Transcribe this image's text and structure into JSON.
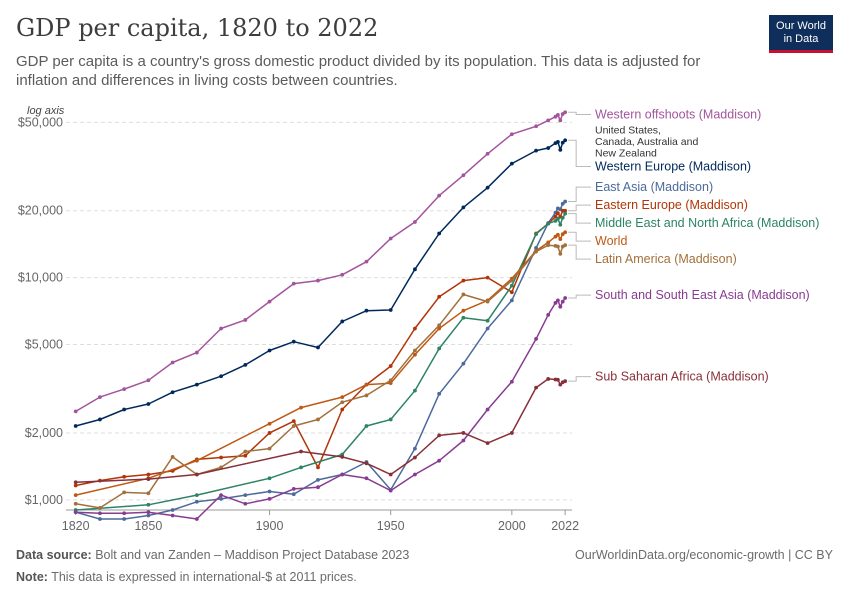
{
  "header": {
    "title": "GDP per capita, 1820 to 2022",
    "subtitle": "GDP per capita is a country's gross domestic product divided by its population. This data is adjusted for inflation and differences in living costs between countries.",
    "logo_line1": "Our World",
    "logo_line2": "in Data"
  },
  "footer": {
    "source_label": "Data source:",
    "source_text": "Bolt and van Zanden – Maddison Project Database 2023",
    "note_label": "Note:",
    "note_text": "This data is expressed in international-$ at 2011 prices.",
    "credit": "OurWorldinData.org/economic-growth | CC BY"
  },
  "chart_data": {
    "type": "line",
    "axis_note": "log axis",
    "y_scale": "log",
    "ylim": [
      900,
      58000
    ],
    "xlim": [
      1820,
      2022
    ],
    "y_ticks": [
      {
        "value": 1000,
        "label": "$1,000"
      },
      {
        "value": 2000,
        "label": "$2,000"
      },
      {
        "value": 5000,
        "label": "$5,000"
      },
      {
        "value": 10000,
        "label": "$10,000"
      },
      {
        "value": 20000,
        "label": "$20,000"
      },
      {
        "value": 50000,
        "label": "$50,000"
      }
    ],
    "x_ticks": [
      {
        "value": 1820,
        "label": "1820"
      },
      {
        "value": 1850,
        "label": "1850"
      },
      {
        "value": 1900,
        "label": "1900"
      },
      {
        "value": 1950,
        "label": "1950"
      },
      {
        "value": 2000,
        "label": "2000"
      },
      {
        "value": 2022,
        "label": "2022"
      }
    ],
    "grid": true,
    "legend": "right-side labels",
    "series": [
      {
        "name": "Western offshoots (Maddison)",
        "note": "United States, Canada, Australia and New Zealand",
        "color": "#a2559c",
        "label_value": 52000,
        "points": [
          [
            1820,
            2500
          ],
          [
            1830,
            2900
          ],
          [
            1840,
            3150
          ],
          [
            1850,
            3450
          ],
          [
            1860,
            4150
          ],
          [
            1870,
            4600
          ],
          [
            1880,
            5900
          ],
          [
            1890,
            6450
          ],
          [
            1900,
            7800
          ],
          [
            1910,
            9400
          ],
          [
            1920,
            9700
          ],
          [
            1930,
            10300
          ],
          [
            1940,
            11800
          ],
          [
            1950,
            15000
          ],
          [
            1960,
            17800
          ],
          [
            1970,
            23400
          ],
          [
            1980,
            28900
          ],
          [
            1990,
            36100
          ],
          [
            2000,
            44200
          ],
          [
            2010,
            48000
          ],
          [
            2015,
            51000
          ],
          [
            2018,
            53000
          ],
          [
            2019,
            54000
          ],
          [
            2020,
            51000
          ],
          [
            2021,
            54500
          ],
          [
            2022,
            55500
          ]
        ]
      },
      {
        "name": "Western Europe (Maddison)",
        "color": "#00295b",
        "label_value": 35500,
        "points": [
          [
            1820,
            2150
          ],
          [
            1830,
            2300
          ],
          [
            1840,
            2550
          ],
          [
            1850,
            2700
          ],
          [
            1860,
            3050
          ],
          [
            1870,
            3300
          ],
          [
            1880,
            3600
          ],
          [
            1890,
            4050
          ],
          [
            1900,
            4700
          ],
          [
            1910,
            5150
          ],
          [
            1920,
            4850
          ],
          [
            1930,
            6350
          ],
          [
            1940,
            7100
          ],
          [
            1950,
            7150
          ],
          [
            1960,
            10900
          ],
          [
            1970,
            15800
          ],
          [
            1980,
            20700
          ],
          [
            1990,
            25400
          ],
          [
            2000,
            32600
          ],
          [
            2010,
            37300
          ],
          [
            2015,
            38300
          ],
          [
            2018,
            40300
          ],
          [
            2019,
            40800
          ],
          [
            2020,
            37600
          ],
          [
            2021,
            40500
          ],
          [
            2022,
            41500
          ]
        ]
      },
      {
        "name": "East Asia (Maddison)",
        "color": "#4c6a9c",
        "label_value": 24500,
        "points": [
          [
            1820,
            880
          ],
          [
            1830,
            820
          ],
          [
            1840,
            820
          ],
          [
            1850,
            850
          ],
          [
            1860,
            900
          ],
          [
            1870,
            980
          ],
          [
            1880,
            1010
          ],
          [
            1890,
            1050
          ],
          [
            1900,
            1090
          ],
          [
            1910,
            1060
          ],
          [
            1920,
            1230
          ],
          [
            1930,
            1300
          ],
          [
            1940,
            1480
          ],
          [
            1950,
            1110
          ],
          [
            1960,
            1700
          ],
          [
            1970,
            3000
          ],
          [
            1980,
            4100
          ],
          [
            1990,
            5900
          ],
          [
            2000,
            7900
          ],
          [
            2010,
            13600
          ],
          [
            2015,
            17600
          ],
          [
            2018,
            19600
          ],
          [
            2019,
            20500
          ],
          [
            2020,
            20300
          ],
          [
            2021,
            21500
          ],
          [
            2022,
            22000
          ]
        ]
      },
      {
        "name": "Eastern Europe (Maddison)",
        "color": "#b13507",
        "label_value": 20900,
        "points": [
          [
            1820,
            1160
          ],
          [
            1830,
            1220
          ],
          [
            1840,
            1270
          ],
          [
            1850,
            1300
          ],
          [
            1860,
            1350
          ],
          [
            1870,
            1520
          ],
          [
            1880,
            1550
          ],
          [
            1890,
            1580
          ],
          [
            1900,
            2000
          ],
          [
            1910,
            2260
          ],
          [
            1920,
            1400
          ],
          [
            1930,
            2550
          ],
          [
            1940,
            3300
          ],
          [
            1950,
            4000
          ],
          [
            1960,
            5900
          ],
          [
            1970,
            8200
          ],
          [
            1980,
            9700
          ],
          [
            1990,
            10000
          ],
          [
            2000,
            8600
          ],
          [
            2010,
            15800
          ],
          [
            2015,
            17500
          ],
          [
            2018,
            18800
          ],
          [
            2019,
            19500
          ],
          [
            2020,
            18800
          ],
          [
            2021,
            20000
          ],
          [
            2022,
            20000
          ]
        ]
      },
      {
        "name": "Middle East and North Africa (Maddison)",
        "color": "#2c8465",
        "label_value": 17600,
        "points": [
          [
            1820,
            900
          ],
          [
            1850,
            950
          ],
          [
            1870,
            1050
          ],
          [
            1900,
            1250
          ],
          [
            1913,
            1400
          ],
          [
            1930,
            1600
          ],
          [
            1940,
            2150
          ],
          [
            1950,
            2300
          ],
          [
            1960,
            3100
          ],
          [
            1970,
            4800
          ],
          [
            1980,
            6600
          ],
          [
            1990,
            6400
          ],
          [
            2000,
            9200
          ],
          [
            2010,
            15700
          ],
          [
            2015,
            17500
          ],
          [
            2018,
            18000
          ],
          [
            2019,
            18400
          ],
          [
            2020,
            17300
          ],
          [
            2021,
            18600
          ],
          [
            2022,
            19400
          ]
        ]
      },
      {
        "name": "World",
        "color": "#be5915",
        "label_value": 15000,
        "points": [
          [
            1820,
            1050
          ],
          [
            1850,
            1250
          ],
          [
            1870,
            1500
          ],
          [
            1900,
            2200
          ],
          [
            1913,
            2600
          ],
          [
            1930,
            2900
          ],
          [
            1940,
            3300
          ],
          [
            1950,
            3350
          ],
          [
            1960,
            4500
          ],
          [
            1970,
            5900
          ],
          [
            1980,
            7100
          ],
          [
            1990,
            7900
          ],
          [
            2000,
            9900
          ],
          [
            2010,
            13200
          ],
          [
            2015,
            14400
          ],
          [
            2018,
            15300
          ],
          [
            2019,
            15600
          ],
          [
            2020,
            14900
          ],
          [
            2021,
            15700
          ],
          [
            2022,
            16000
          ]
        ]
      },
      {
        "name": "Latin America (Maddison)",
        "color": "#a2713b",
        "label_value": 12700,
        "points": [
          [
            1820,
            960
          ],
          [
            1830,
            920
          ],
          [
            1840,
            1080
          ],
          [
            1850,
            1070
          ],
          [
            1860,
            1560
          ],
          [
            1870,
            1300
          ],
          [
            1880,
            1400
          ],
          [
            1890,
            1650
          ],
          [
            1900,
            1700
          ],
          [
            1910,
            2150
          ],
          [
            1920,
            2300
          ],
          [
            1930,
            2750
          ],
          [
            1940,
            2950
          ],
          [
            1950,
            3450
          ],
          [
            1960,
            4700
          ],
          [
            1970,
            6100
          ],
          [
            1980,
            8400
          ],
          [
            1990,
            7800
          ],
          [
            2000,
            9700
          ],
          [
            2010,
            13100
          ],
          [
            2015,
            14000
          ],
          [
            2018,
            13900
          ],
          [
            2019,
            13800
          ],
          [
            2020,
            12800
          ],
          [
            2021,
            13800
          ],
          [
            2022,
            14000
          ]
        ]
      },
      {
        "name": "South and South East Asia (Maddison)",
        "color": "#883c91",
        "label_value": 8000,
        "points": [
          [
            1820,
            880
          ],
          [
            1830,
            870
          ],
          [
            1840,
            870
          ],
          [
            1850,
            880
          ],
          [
            1860,
            850
          ],
          [
            1870,
            820
          ],
          [
            1880,
            1050
          ],
          [
            1890,
            960
          ],
          [
            1900,
            1010
          ],
          [
            1910,
            1120
          ],
          [
            1920,
            1140
          ],
          [
            1930,
            1300
          ],
          [
            1940,
            1250
          ],
          [
            1950,
            1100
          ],
          [
            1960,
            1300
          ],
          [
            1970,
            1500
          ],
          [
            1980,
            1850
          ],
          [
            1990,
            2550
          ],
          [
            2000,
            3400
          ],
          [
            2010,
            5300
          ],
          [
            2015,
            6800
          ],
          [
            2018,
            7700
          ],
          [
            2019,
            7900
          ],
          [
            2020,
            7400
          ],
          [
            2021,
            7800
          ],
          [
            2022,
            8100
          ]
        ]
      },
      {
        "name": "Sub Saharan Africa (Maddison)",
        "color": "#883039",
        "label_value": 3440,
        "points": [
          [
            1820,
            1200
          ],
          [
            1850,
            1240
          ],
          [
            1870,
            1300
          ],
          [
            1913,
            1650
          ],
          [
            1930,
            1560
          ],
          [
            1940,
            1460
          ],
          [
            1950,
            1300
          ],
          [
            1960,
            1550
          ],
          [
            1970,
            1950
          ],
          [
            1980,
            2000
          ],
          [
            1990,
            1800
          ],
          [
            2000,
            2000
          ],
          [
            2010,
            3200
          ],
          [
            2015,
            3500
          ],
          [
            2018,
            3480
          ],
          [
            2019,
            3470
          ],
          [
            2020,
            3300
          ],
          [
            2021,
            3380
          ],
          [
            2022,
            3420
          ]
        ]
      }
    ]
  }
}
